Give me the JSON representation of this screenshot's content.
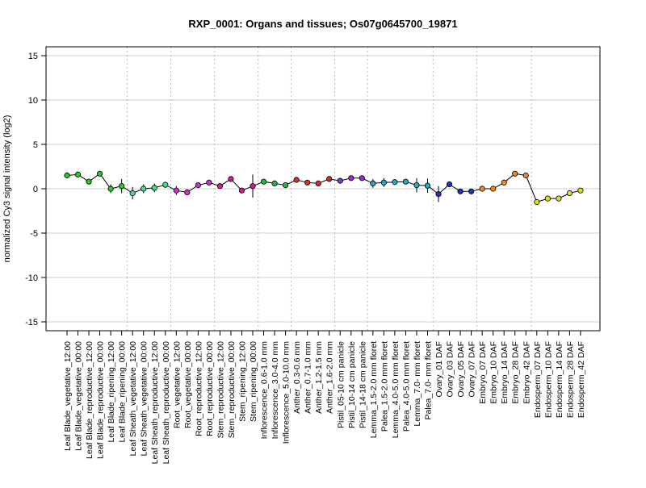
{
  "chart_data": {
    "type": "line",
    "title": "RXP_0001: Organs and tissues; Os07g0645700_19871",
    "xlabel": "",
    "ylabel": "normalized Cy3 signal intensity (log2)",
    "ylim": [
      -16,
      16
    ],
    "yticks": [
      -15,
      -10,
      -5,
      0,
      5,
      10,
      15
    ],
    "grid": "horizontal",
    "legend": "none",
    "groups": [
      {
        "labels": [
          "Leaf Blade_vegetative_12:00",
          "Leaf Blade_vegetative_00:00",
          "Leaf Blade_reproductive_12:00",
          "Leaf Blade_reproductive_00:00",
          "Leaf Blade_ripening_12:00",
          "Leaf Blade_ripening_00:00"
        ],
        "color": "#22cc22",
        "values": [
          1.5,
          1.6,
          0.8,
          1.7,
          0.0,
          0.3
        ],
        "err": [
          0.35,
          0.3,
          0.2,
          0.2,
          0.5,
          0.8
        ]
      },
      {
        "labels": [
          "Leaf Sheath_vegetative_12:00",
          "Leaf Sheath_vegetative_00:00",
          "Leaf Sheath_reproductive_12:00",
          "Leaf Sheath_reproductive_00:00"
        ],
        "color": "#44dd88",
        "values": [
          -0.5,
          0.0,
          0.1,
          0.45
        ],
        "err": [
          0.7,
          0.5,
          0.5,
          0.35
        ]
      },
      {
        "labels": [
          "Root_vegetative_12:00",
          "Root_vegetative_00:00",
          "Root_reproductive_12:00",
          "Root_reproductive_00:00"
        ],
        "color": "#cc33cc",
        "values": [
          -0.2,
          -0.4,
          0.4,
          0.7
        ],
        "err": [
          0.5,
          0.3,
          0.2,
          0.2
        ]
      },
      {
        "labels": [
          "Stem_reproductive_12:00",
          "Stem_reproductive_00:00",
          "Stem_ripening_12:00",
          "Stem_ripening_00:00"
        ],
        "color": "#cc1f88",
        "values": [
          0.3,
          1.1,
          -0.2,
          0.3
        ],
        "err": [
          0.3,
          0.3,
          0.2,
          1.3
        ]
      },
      {
        "labels": [
          "Inflorescence_0.6-1.0 mm",
          "Inflorescence_3.0-4.0 mm",
          "Inflorescence_5.0-10.0 mm"
        ],
        "color": "#22bb33",
        "values": [
          0.8,
          0.6,
          0.4
        ],
        "err": [
          0.2,
          0.2,
          0.2
        ]
      },
      {
        "labels": [
          "Anther_0.3-0.6 mm",
          "Anther_0.7-1.0 mm",
          "Anther_1.2-1.5 mm",
          "Anther_1.6-2.0 mm"
        ],
        "color": "#cc3322",
        "values": [
          1.0,
          0.7,
          0.6,
          1.1
        ],
        "err": [
          0.2,
          0.2,
          0.2,
          0.2
        ]
      },
      {
        "labels": [
          "Pistil_05-10 cm panicle",
          "Pistil_10-14 cm panicle",
          "Pistil_14-18 cm panicle"
        ],
        "color": "#8833cc",
        "values": [
          0.9,
          1.2,
          1.2
        ],
        "err": [
          0.2,
          0.2,
          0.2
        ]
      },
      {
        "labels": [
          "Lemma_1.5-2.0 mm floret",
          "Palea_1.5-2.0 mm floret",
          "Lemma_4.0-5.0 mm floret",
          "Palea_4.0-5.0 mm floret",
          "Lemma_7.0- mm floret",
          "Palea_7.0- mm floret"
        ],
        "color": "#22aacc",
        "values": [
          0.6,
          0.7,
          0.75,
          0.8,
          0.4,
          0.35
        ],
        "err": [
          0.5,
          0.5,
          0.3,
          0.3,
          0.8,
          0.8
        ]
      },
      {
        "labels": [
          "Ovary_01 DAF",
          "Ovary_03 DAF",
          "Ovary_05 DAF",
          "Ovary_07 DAF"
        ],
        "color": "#2233bb",
        "values": [
          -0.6,
          0.5,
          -0.3,
          -0.3
        ],
        "err": [
          0.9,
          0.3,
          0.3,
          0.3
        ]
      },
      {
        "labels": [
          "Embryo_07 DAF",
          "Embryo_10 DAF",
          "Embryo_14 DAF",
          "Embryo_28 DAF",
          "Embryo_42 DAF"
        ],
        "color": "#ee8822",
        "values": [
          0.0,
          0.0,
          0.7,
          1.7,
          1.5
        ],
        "err": [
          0.3,
          0.2,
          0.2,
          0.2,
          0.3
        ]
      },
      {
        "labels": [
          "Endosperm_07 DAF",
          "Endosperm_10 DAF",
          "Endosperm_14 DAF",
          "Endosperm_28 DAF",
          "Endosperm_42 DAF"
        ],
        "color": "#dddd22",
        "values": [
          -1.5,
          -1.1,
          -1.1,
          -0.5,
          -0.2
        ],
        "err": [
          0.2,
          0.3,
          0.3,
          0.2,
          0.2
        ]
      }
    ]
  }
}
